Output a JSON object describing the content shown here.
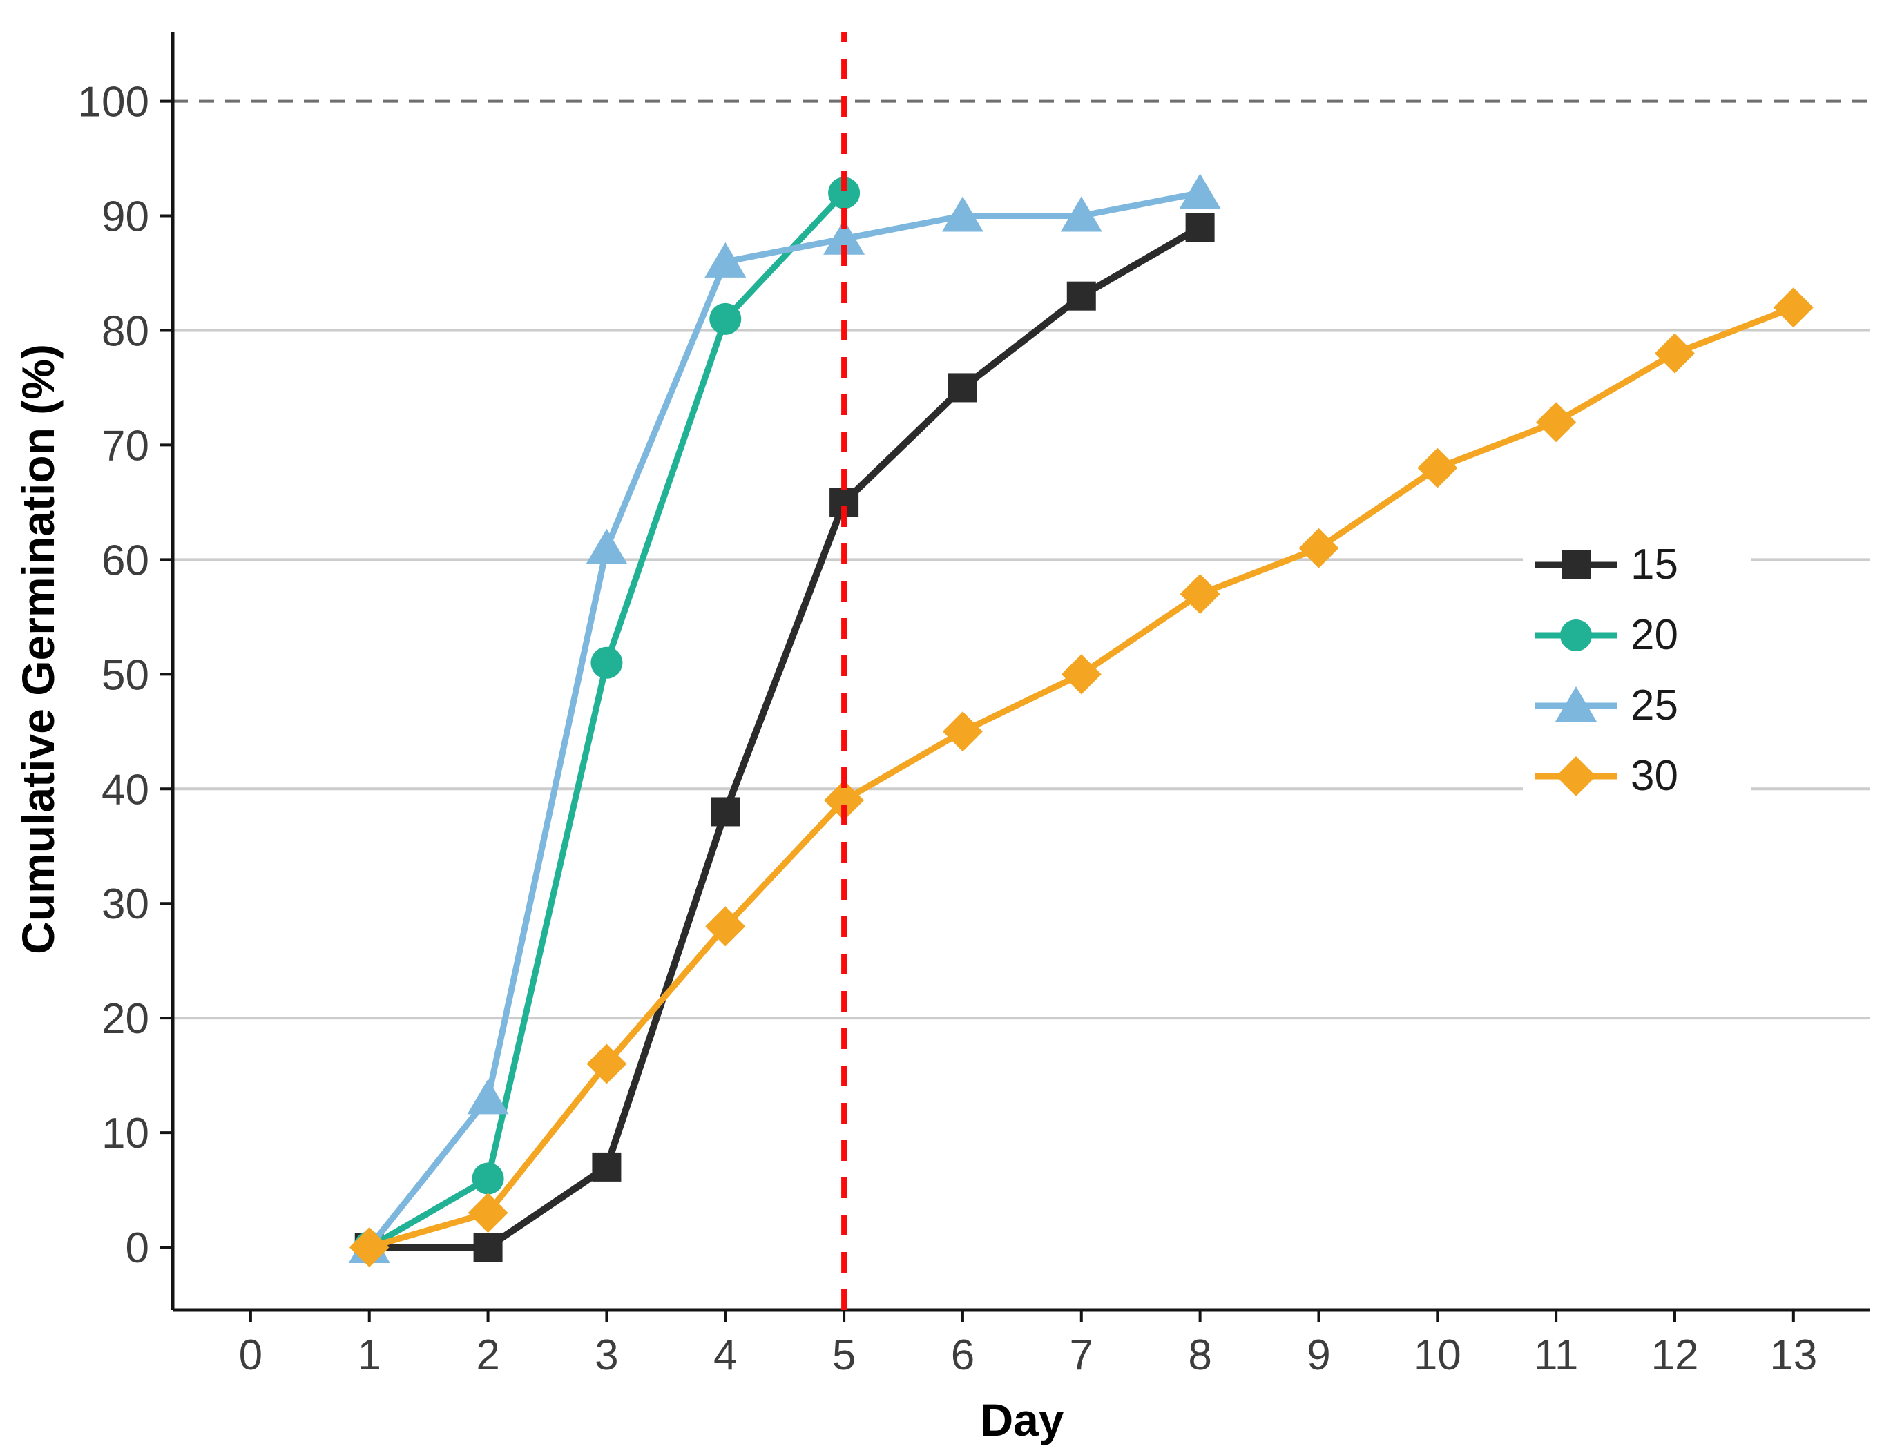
{
  "chart_data": {
    "type": "line",
    "title": "",
    "xlabel": "Day",
    "ylabel": "Cumulative Germination (%)",
    "xlim": [
      -0.657,
      13.647
    ],
    "ylim": [
      -5.48,
      106.0
    ],
    "x_ticks": [
      0,
      1,
      2,
      3,
      4,
      5,
      6,
      7,
      8,
      9,
      10,
      11,
      12,
      13
    ],
    "y_ticks": [
      0,
      10,
      20,
      30,
      40,
      50,
      60,
      70,
      80,
      90,
      100
    ],
    "solid_gridlines_y": [
      20,
      40,
      60,
      80
    ],
    "dashed_gridline_y": 100,
    "grid_on": true,
    "legend_position": "right-middle",
    "series": [
      {
        "name": "15",
        "marker": "square",
        "color": "#2B2B2B",
        "x": [
          1,
          2,
          3,
          4,
          5,
          6,
          7,
          8
        ],
        "y": [
          0,
          0,
          7,
          38,
          65,
          75,
          83,
          89
        ]
      },
      {
        "name": "20",
        "marker": "circle",
        "color": "#21B295",
        "x": [
          1,
          2,
          3,
          4,
          5
        ],
        "y": [
          0,
          6,
          51,
          81,
          92
        ]
      },
      {
        "name": "25",
        "marker": "triangle",
        "color": "#7DB7DD",
        "x": [
          1,
          2,
          3,
          4,
          5,
          6,
          7,
          8
        ],
        "y": [
          0,
          13,
          61,
          86,
          88,
          90,
          90,
          92
        ]
      },
      {
        "name": "30",
        "marker": "diamond",
        "color": "#F4A522",
        "x": [
          1,
          2,
          3,
          4,
          5,
          6,
          7,
          8,
          9,
          10,
          11,
          12,
          13
        ],
        "y": [
          0,
          3,
          16,
          28,
          39,
          45,
          50,
          57,
          61,
          68,
          72,
          78,
          82
        ]
      }
    ],
    "reference_lines": {
      "vertical_dashed": {
        "x": 5,
        "color": "#F80B0B",
        "label": ""
      },
      "horizontal_dashed": {
        "y": 100,
        "color": "#6F6F6F"
      }
    },
    "colors": {
      "background": "#FFFFFF",
      "gridline": "#CCCCCC",
      "axis": "#141414",
      "tick_label": "#3D3D3D"
    },
    "legend_items": [
      {
        "label": "15",
        "marker": "square",
        "color": "#2B2B2B"
      },
      {
        "label": "20",
        "marker": "circle",
        "color": "#21B295"
      },
      {
        "label": "25",
        "marker": "triangle",
        "color": "#7DB7DD"
      },
      {
        "label": "30",
        "marker": "diamond",
        "color": "#F4A522"
      }
    ]
  }
}
